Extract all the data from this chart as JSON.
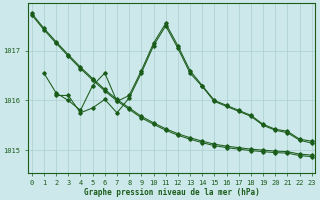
{
  "title": "Graphe pression niveau de la mer (hPa)",
  "bg_color": "#cde8ea",
  "grid_color": "#aacfcf",
  "line_color": "#1a5c1a",
  "x_ticks": [
    0,
    1,
    2,
    3,
    4,
    5,
    6,
    7,
    8,
    9,
    10,
    11,
    12,
    13,
    14,
    15,
    16,
    17,
    18,
    19,
    20,
    21,
    22,
    23
  ],
  "y_ticks": [
    1015,
    1016,
    1017
  ],
  "ylim": [
    1014.55,
    1017.95
  ],
  "xlim": [
    -0.3,
    23.3
  ],
  "line1_x": [
    0,
    1,
    2,
    3,
    4,
    5,
    6,
    7,
    8,
    9,
    10,
    11,
    12,
    13,
    14,
    15,
    16,
    17,
    18,
    19,
    20,
    21,
    22,
    23
  ],
  "line1_y": [
    1017.75,
    1017.45,
    1017.18,
    1016.92,
    1016.67,
    1016.44,
    1016.22,
    1016.02,
    1015.85,
    1015.68,
    1015.55,
    1015.43,
    1015.33,
    1015.25,
    1015.18,
    1015.12,
    1015.08,
    1015.05,
    1015.02,
    1015.0,
    1014.98,
    1014.97,
    1014.92,
    1014.9
  ],
  "line2_x": [
    0,
    1,
    2,
    3,
    4,
    5,
    6,
    7,
    8,
    9,
    10,
    11,
    12,
    13,
    14,
    15,
    16,
    17,
    18,
    19,
    20,
    21,
    22,
    23
  ],
  "line2_y": [
    1017.72,
    1017.42,
    1017.15,
    1016.89,
    1016.64,
    1016.41,
    1016.19,
    1015.99,
    1015.82,
    1015.65,
    1015.52,
    1015.4,
    1015.3,
    1015.22,
    1015.15,
    1015.09,
    1015.05,
    1015.02,
    1014.99,
    1014.97,
    1014.95,
    1014.94,
    1014.89,
    1014.87
  ],
  "line3_x": [
    1,
    2,
    3,
    4,
    5,
    6,
    7,
    8,
    9,
    10,
    11,
    12,
    13,
    14,
    15,
    16,
    17,
    18,
    19,
    20,
    21,
    22,
    23
  ],
  "line3_y": [
    1016.55,
    1016.15,
    1016.0,
    1015.8,
    1016.3,
    1016.55,
    1015.98,
    1016.1,
    1016.6,
    1017.15,
    1017.55,
    1017.1,
    1016.6,
    1016.3,
    1016.0,
    1015.9,
    1015.8,
    1015.7,
    1015.52,
    1015.42,
    1015.38,
    1015.22,
    1015.18
  ],
  "line4_x": [
    2,
    3,
    4,
    5,
    6,
    7,
    8,
    9,
    10,
    11,
    12,
    13,
    14,
    15,
    16,
    17,
    18,
    19,
    20,
    21,
    22,
    23
  ],
  "line4_y": [
    1016.1,
    1016.1,
    1015.75,
    1015.85,
    1016.02,
    1015.75,
    1016.05,
    1016.55,
    1017.1,
    1017.5,
    1017.05,
    1016.55,
    1016.28,
    1015.98,
    1015.88,
    1015.78,
    1015.68,
    1015.5,
    1015.4,
    1015.35,
    1015.2,
    1015.14
  ]
}
